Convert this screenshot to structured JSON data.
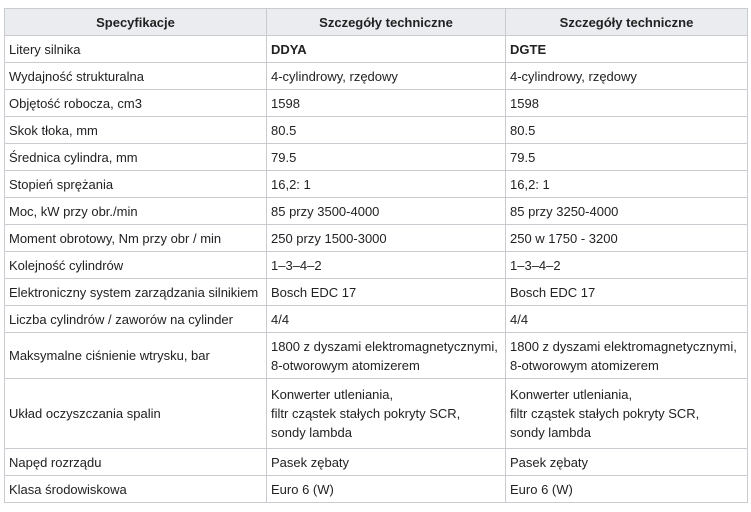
{
  "table": {
    "headers": [
      "Specyfikacje",
      "Szczegóły techniczne",
      "Szczegóły techniczne"
    ],
    "rows": [
      {
        "label": "Litery silnika",
        "a": [
          "DDYA"
        ],
        "b": [
          "DGTE"
        ]
      },
      {
        "label": "Wydajność strukturalna",
        "a": [
          "4-cylindrowy, rzędowy"
        ],
        "b": [
          "4-cylindrowy, rzędowy"
        ]
      },
      {
        "label": "Objętość robocza, cm3",
        "a": [
          "1598"
        ],
        "b": [
          "1598"
        ]
      },
      {
        "label": "Skok tłoka, mm",
        "a": [
          "80.5"
        ],
        "b": [
          "80.5"
        ]
      },
      {
        "label": "Średnica cylindra, mm",
        "a": [
          "79.5"
        ],
        "b": [
          "79.5"
        ]
      },
      {
        "label": "Stopień sprężania",
        "a": [
          "16,2: 1"
        ],
        "b": [
          "16,2: 1"
        ]
      },
      {
        "label": "Moc, kW przy obr./min",
        "a": [
          "85 przy 3500-4000"
        ],
        "b": [
          "85 przy 3250-4000"
        ]
      },
      {
        "label": "Moment obrotowy, Nm przy obr / min",
        "a": [
          "250 przy 1500-3000"
        ],
        "b": [
          "250 w 1750 - 3200"
        ]
      },
      {
        "label": "Kolejność cylindrów",
        "a": [
          "1–3–4–2"
        ],
        "b": [
          "1–3–4–2"
        ]
      },
      {
        "label": "Elektroniczny system zarządzania silnikiem",
        "a": [
          "Bosch EDC 17"
        ],
        "b": [
          "Bosch EDC 17"
        ]
      },
      {
        "label": "Liczba cylindrów / zaworów na cylinder",
        "a": [
          "4/4"
        ],
        "b": [
          "4/4"
        ]
      },
      {
        "label": "Maksymalne ciśnienie wtrysku, bar",
        "a": [
          "1800 z dyszami elektromagnetycznymi,",
          "8-otworowym atomizerem"
        ],
        "b": [
          "1800 z dyszami elektromagnetycznymi,",
          "8-otworowym atomizerem"
        ]
      },
      {
        "label": "Układ oczyszczania spalin",
        "a": [
          "Konwerter utleniania,",
          "filtr cząstek stałych pokryty SCR,",
          "sondy lambda"
        ],
        "b": [
          "Konwerter utleniania,",
          "filtr cząstek stałych pokryty SCR,",
          "sondy lambda"
        ]
      },
      {
        "label": "Napęd rozrządu",
        "a": [
          "Pasek zębaty"
        ],
        "b": [
          "Pasek zębaty"
        ]
      },
      {
        "label": "Klasa środowiskowa",
        "a": [
          "Euro 6 (W)"
        ],
        "b": [
          "Euro 6 (W)"
        ]
      }
    ]
  }
}
